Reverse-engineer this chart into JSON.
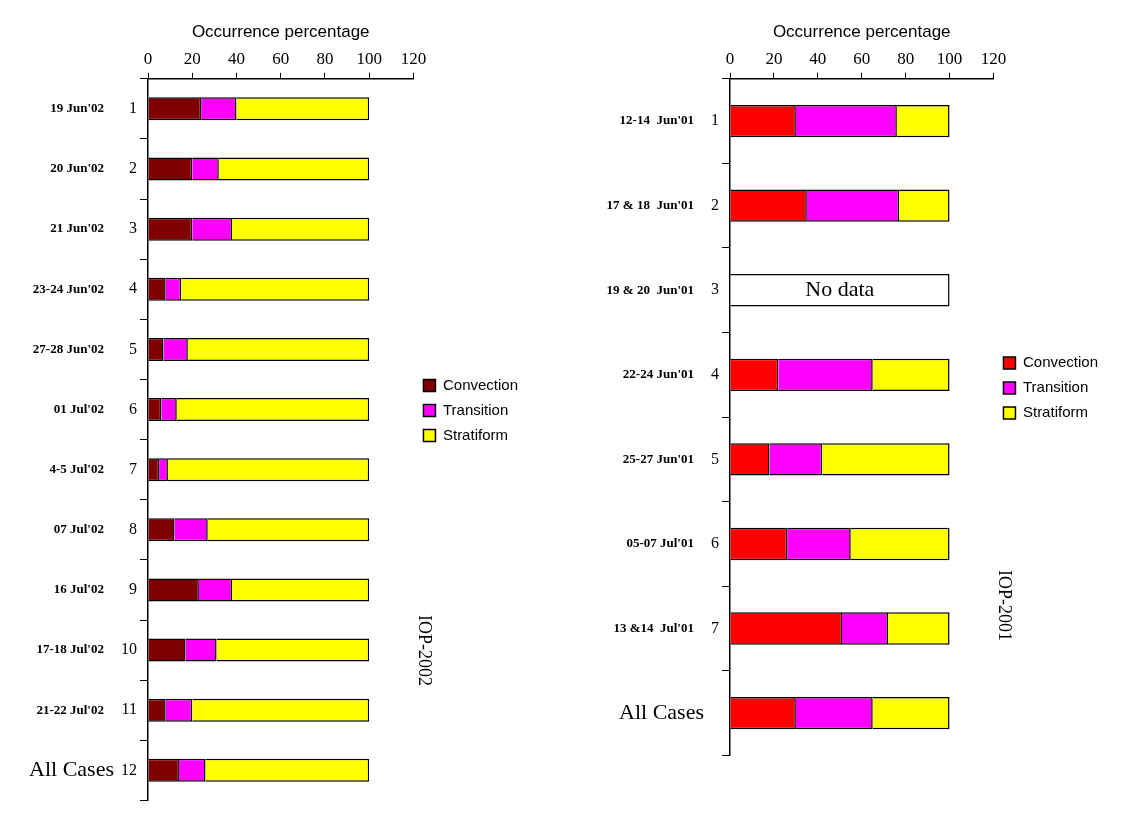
{
  "chart_data": [
    {
      "type": "bar",
      "orientation": "horizontal",
      "stacked": true,
      "xlabel": "Occurrence percentage",
      "categories": [
        "1",
        "2",
        "3",
        "4",
        "5",
        "6",
        "7",
        "8",
        "9",
        "10",
        "11",
        "12"
      ],
      "series": [
        {
          "name": "Convection",
          "color": "#800000",
          "values": [
            24,
            20,
            20,
            8,
            7,
            6,
            5,
            12,
            23,
            17,
            8,
            14
          ]
        },
        {
          "name": "Transition",
          "color": "#ff00ff",
          "values": [
            16,
            12,
            18,
            7,
            11,
            7,
            4,
            15,
            15,
            14,
            12,
            12
          ]
        },
        {
          "name": "Stratiform",
          "color": "#ffff00",
          "values": [
            60,
            68,
            62,
            85,
            82,
            87,
            91,
            73,
            62,
            69,
            80,
            74
          ]
        }
      ],
      "xlim": [
        0,
        120
      ],
      "xticks": [
        0,
        20,
        40,
        60,
        80,
        100,
        120
      ],
      "grid": false,
      "legend": "right",
      "annotations": [
        "19 Jun'02",
        "20 Jun'02",
        "21 Jun'02",
        "23-24 Jun'02",
        "27-28 Jun'02",
        "01 Jul'02",
        "4-5 Jul'02",
        "07 Jul'02",
        "16 Jul'02",
        "17-18 Jul'02",
        "21-22 Jul'02",
        "All Cases",
        "IOP-2002"
      ]
    },
    {
      "type": "bar",
      "orientation": "horizontal",
      "stacked": true,
      "xlabel": "Occurrence percentage",
      "categories": [
        "1",
        "2",
        "3",
        "4",
        "5",
        "6",
        "7",
        null
      ],
      "series": [
        {
          "name": "Convection",
          "color": "#ff0000",
          "values": [
            30,
            35,
            null,
            22,
            18,
            26,
            51,
            30
          ]
        },
        {
          "name": "Transition",
          "color": "#ff00ff",
          "values": [
            46,
            42,
            null,
            43,
            24,
            29,
            21,
            35
          ]
        },
        {
          "name": "Stratiform",
          "color": "#ffff00",
          "values": [
            24,
            23,
            null,
            35,
            58,
            45,
            28,
            35
          ]
        },
        {
          "color": "#ffffff",
          "values": [
            null,
            null,
            100,
            null,
            null,
            null,
            null,
            null
          ]
        }
      ],
      "xlim": [
        0,
        120
      ],
      "xticks": [
        0,
        20,
        40,
        60,
        80,
        100,
        120
      ],
      "grid": false,
      "legend": "right",
      "annotations": [
        "12-14  Jun'01",
        "17 & 18  Jun'01",
        "19 & 20  Jun'01",
        "22-24 Jun'01",
        "25-27 Jun'01",
        "05-07 Jul'01",
        "13 &14  Jul'01",
        "All Cases",
        "No data",
        "IOP-2001"
      ]
    }
  ]
}
